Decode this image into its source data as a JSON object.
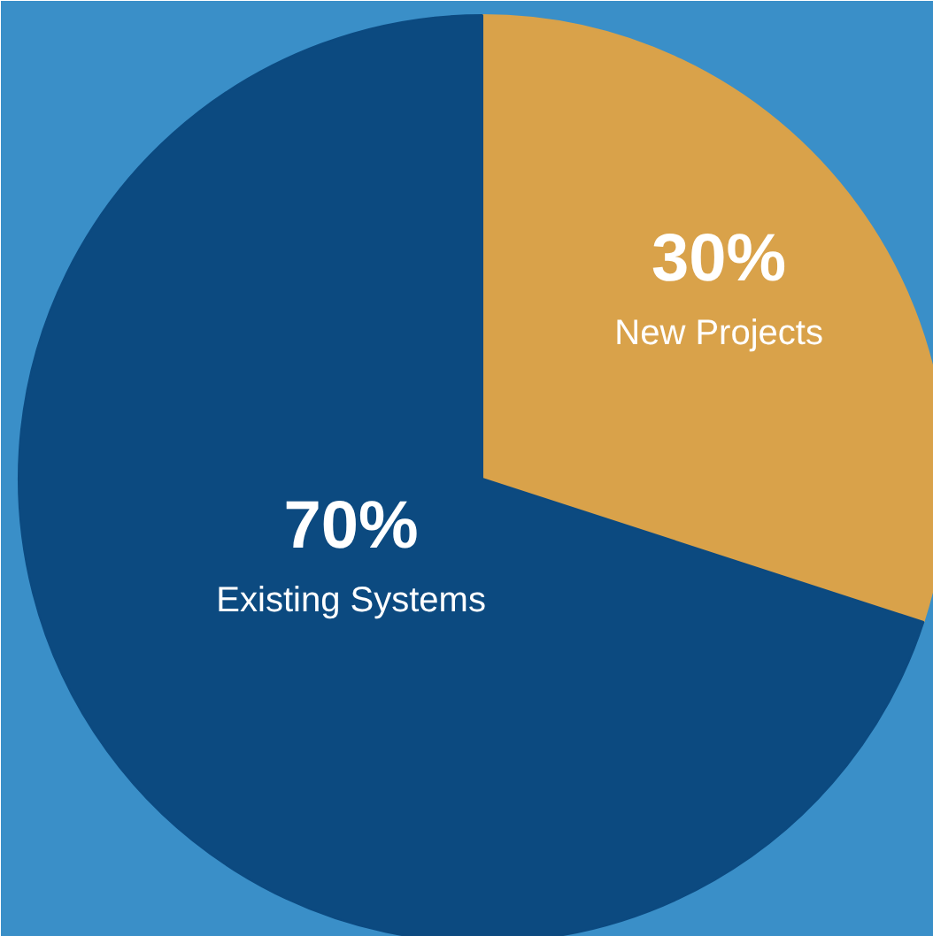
{
  "chart_data": {
    "type": "pie",
    "categories": [
      "New Projects",
      "Existing Systems"
    ],
    "values": [
      30,
      70
    ],
    "colors": [
      "#d9a24a",
      "#0c4a80"
    ],
    "value_labels": [
      "30%",
      "70%"
    ]
  }
}
